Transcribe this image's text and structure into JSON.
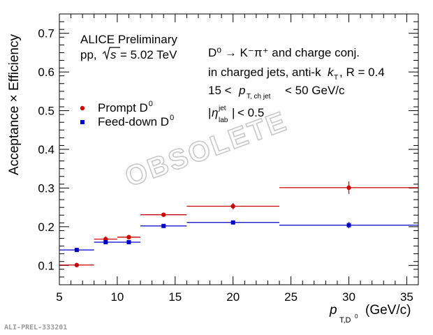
{
  "chart_data": {
    "type": "scatter",
    "ylabel": "Acceptance × Efficiency",
    "xlabel": {
      "p": "p",
      "sub": "T,D",
      "sup": "0",
      "unit": "(GeV/c)"
    },
    "xlim": [
      5,
      36
    ],
    "ylim": [
      0.05,
      0.75
    ],
    "x_ticks": [
      5,
      10,
      15,
      20,
      25,
      30,
      35
    ],
    "y_ticks": [
      0.1,
      0.2,
      0.3,
      0.4,
      0.5,
      0.6,
      0.7
    ],
    "grid": false,
    "legend_position": "left-middle",
    "series": [
      {
        "name": "Prompt D0",
        "color": "#cc0000",
        "marker": "circle",
        "points": [
          {
            "x": 6.5,
            "xlo": 5,
            "xhi": 8,
            "y": 0.101,
            "yerr": 0.004
          },
          {
            "x": 9,
            "xlo": 8,
            "xhi": 10,
            "y": 0.168,
            "yerr": 0.007
          },
          {
            "x": 11,
            "xlo": 10,
            "xhi": 12,
            "y": 0.173,
            "yerr": 0.006
          },
          {
            "x": 14,
            "xlo": 12,
            "xhi": 16,
            "y": 0.231,
            "yerr": 0.005
          },
          {
            "x": 20,
            "xlo": 16,
            "xhi": 24,
            "y": 0.253,
            "yerr": 0.008
          },
          {
            "x": 30,
            "xlo": 24,
            "xhi": 36,
            "y": 0.301,
            "yerr": 0.016
          }
        ]
      },
      {
        "name": "Feed-down D0",
        "color": "#0000cc",
        "marker": "square",
        "points": [
          {
            "x": 6.5,
            "xlo": 5,
            "xhi": 8,
            "y": 0.14,
            "yerr": 0.003
          },
          {
            "x": 9,
            "xlo": 8,
            "xhi": 10,
            "y": 0.16,
            "yerr": 0.004
          },
          {
            "x": 11,
            "xlo": 10,
            "xhi": 12,
            "y": 0.16,
            "yerr": 0.004
          },
          {
            "x": 14,
            "xlo": 12,
            "xhi": 16,
            "y": 0.202,
            "yerr": 0.003
          },
          {
            "x": 20,
            "xlo": 16,
            "xhi": 24,
            "y": 0.211,
            "yerr": 0.003
          },
          {
            "x": 30,
            "xlo": 24,
            "xhi": 36,
            "y": 0.204,
            "yerr": 0.008
          }
        ]
      }
    ],
    "annotations": {
      "experiment": "ALICE Preliminary",
      "system": "pp,",
      "energy_value": "= 5.02 TeV",
      "decay": "D⁰ → K⁻π⁺ and charge conj.",
      "jets": "in charged jets, anti-k",
      "jet_radius": ", R = 0.4",
      "pt_range_low": "15 <",
      "pt_range_high": "< 50 GeV/c",
      "eta_cut": "< 0.5",
      "watermark": "OBSOLETE",
      "figure_id": "ALI-PREL-333201"
    }
  }
}
